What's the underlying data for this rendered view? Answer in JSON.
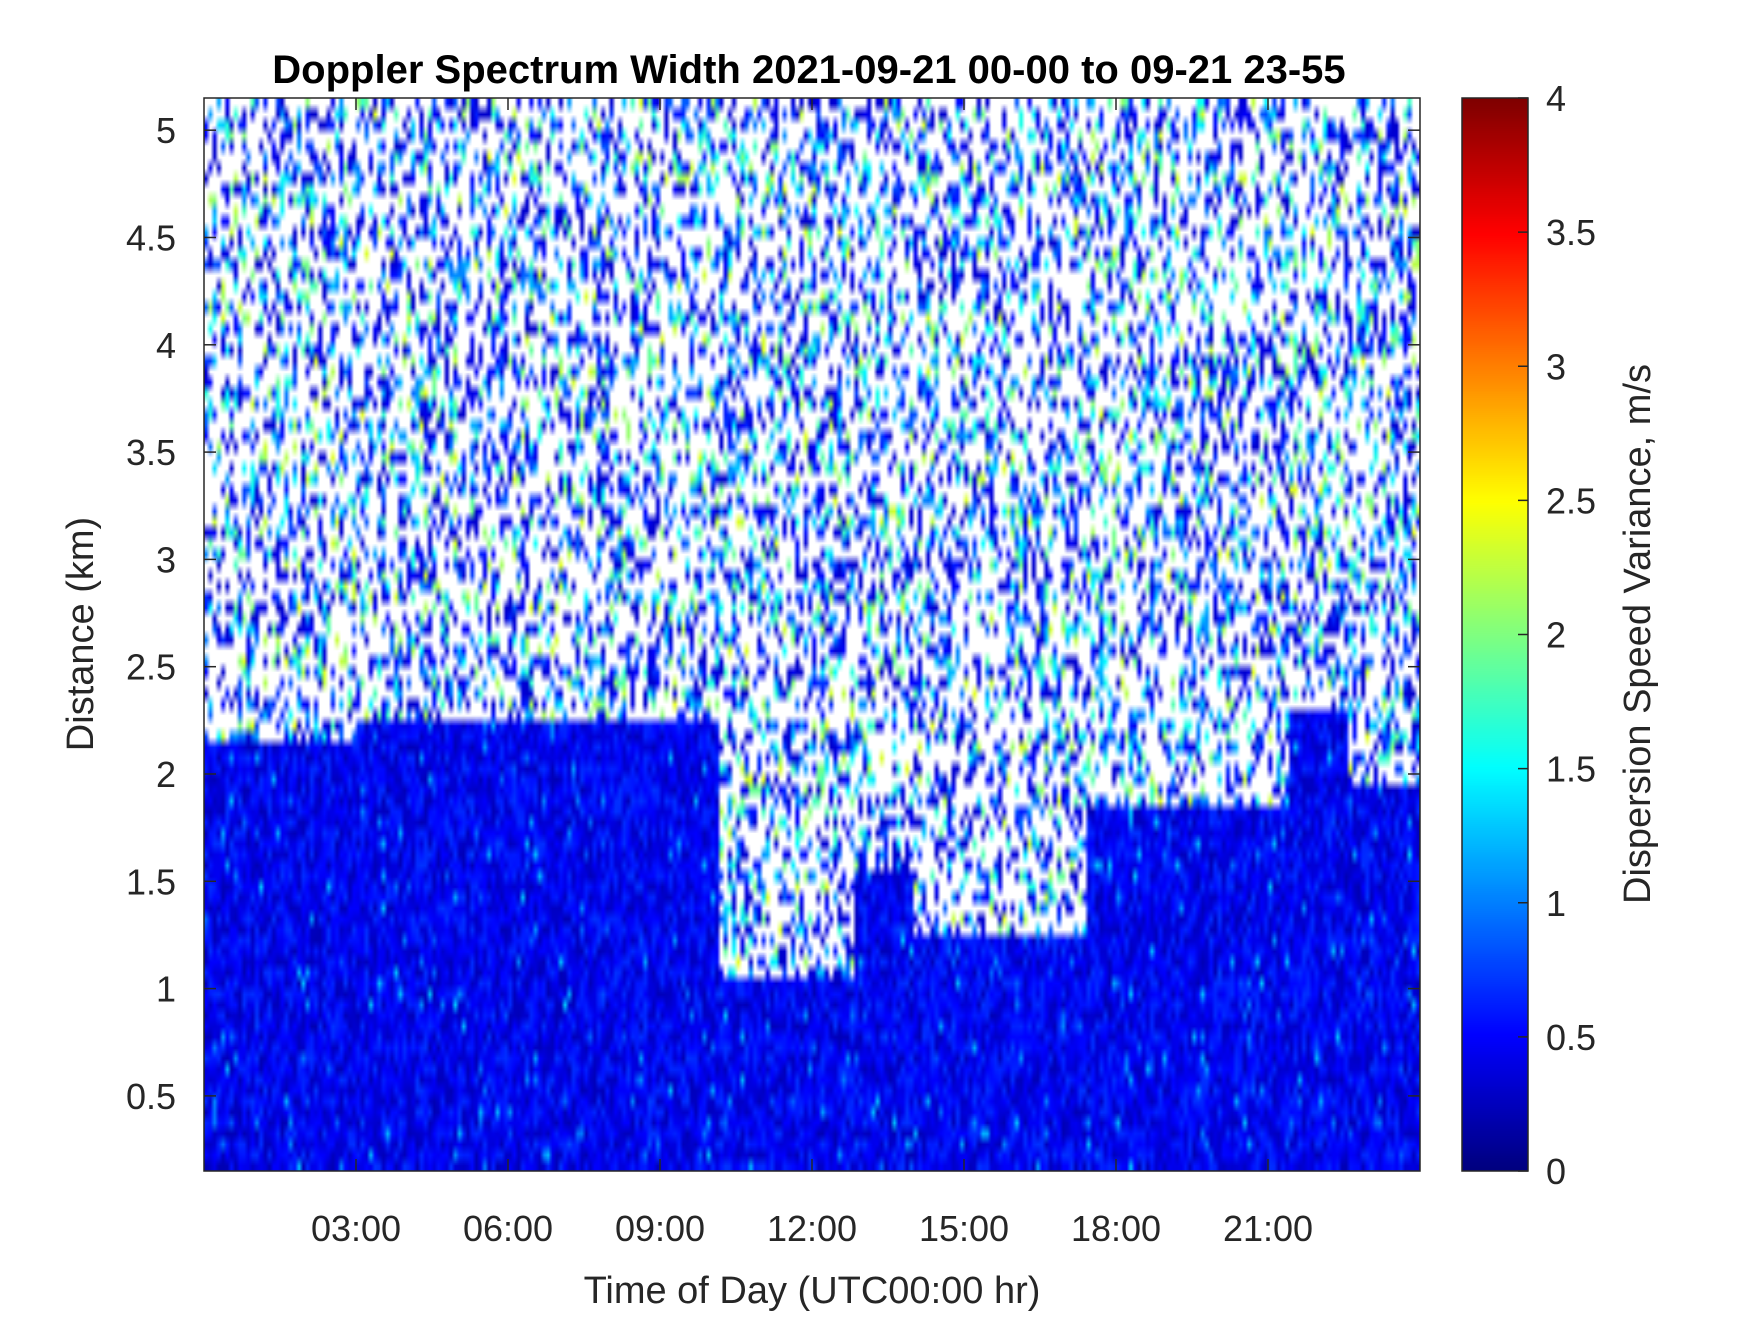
{
  "chart_data": {
    "type": "heatmap",
    "title": "Doppler Spectrum Width 2021-09-21 00-00 to 09-21 23-55",
    "xlabel": "Time of Day (UTC00:00 hr)",
    "ylabel": "Distance (km)",
    "colorbar_label": "Dispersion Speed Variance, m/s",
    "colormap": "jet",
    "xlim_hours": [
      0,
      24
    ],
    "ylim_km": [
      0.15,
      5.15
    ],
    "clim": [
      0,
      4
    ],
    "x_ticks": [
      {
        "value": 3,
        "label": "03:00"
      },
      {
        "value": 6,
        "label": "06:00"
      },
      {
        "value": 9,
        "label": "09:00"
      },
      {
        "value": 12,
        "label": "12:00"
      },
      {
        "value": 15,
        "label": "15:00"
      },
      {
        "value": 18,
        "label": "18:00"
      },
      {
        "value": 21,
        "label": "21:00"
      }
    ],
    "y_ticks": [
      {
        "value": 0.5,
        "label": "0.5"
      },
      {
        "value": 1,
        "label": "1"
      },
      {
        "value": 1.5,
        "label": "1.5"
      },
      {
        "value": 2,
        "label": "2"
      },
      {
        "value": 2.5,
        "label": "2.5"
      },
      {
        "value": 3,
        "label": "3"
      },
      {
        "value": 3.5,
        "label": "3.5"
      },
      {
        "value": 4,
        "label": "4"
      },
      {
        "value": 4.5,
        "label": "4.5"
      },
      {
        "value": 5,
        "label": "5"
      }
    ],
    "colorbar_ticks": [
      {
        "value": 0,
        "label": "0"
      },
      {
        "value": 0.5,
        "label": "0.5"
      },
      {
        "value": 1,
        "label": "1"
      },
      {
        "value": 1.5,
        "label": "1.5"
      },
      {
        "value": 2,
        "label": "2"
      },
      {
        "value": 2.5,
        "label": "2.5"
      },
      {
        "value": 3,
        "label": "3"
      },
      {
        "value": 3.5,
        "label": "3.5"
      },
      {
        "value": 4,
        "label": "4"
      }
    ],
    "time_resolution_min": 5,
    "range_resolution_km": 0.05,
    "cloud_top_km": [
      {
        "from_h": 0,
        "to_h": 3,
        "km": 2.15
      },
      {
        "from_h": 3,
        "to_h": 10.2,
        "km": 2.25
      },
      {
        "from_h": 10.2,
        "to_h": 12.8,
        "km": 1.05
      },
      {
        "from_h": 12.8,
        "to_h": 14,
        "km": 1.55
      },
      {
        "from_h": 14,
        "to_h": 17.4,
        "km": 1.25
      },
      {
        "from_h": 17.4,
        "to_h": 21.4,
        "km": 1.85
      },
      {
        "from_h": 21.4,
        "to_h": 22.6,
        "km": 2.3
      },
      {
        "from_h": 22.6,
        "to_h": 24,
        "km": 1.95
      }
    ],
    "cloud_width_range_m_s": [
      0.2,
      0.7
    ],
    "noise_width_range_m_s": [
      0.3,
      2.4
    ]
  }
}
